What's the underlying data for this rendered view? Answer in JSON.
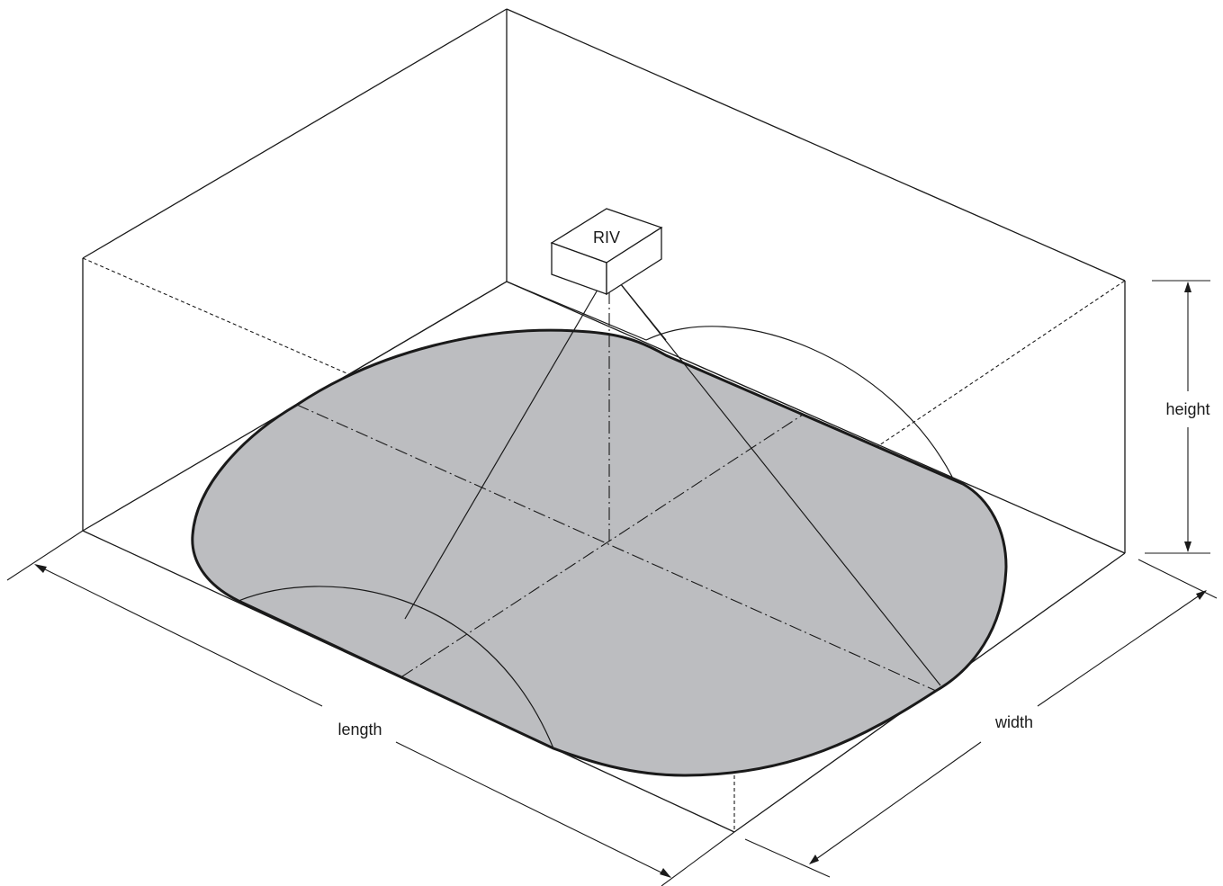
{
  "diagram": {
    "device_label": "RIV",
    "dimensions": {
      "length_label": "length",
      "width_label": "width",
      "height_label": "height"
    },
    "colors": {
      "coverage_fill": "#bcbdc0",
      "line": "#1a1a1a",
      "background": "#ffffff"
    }
  }
}
